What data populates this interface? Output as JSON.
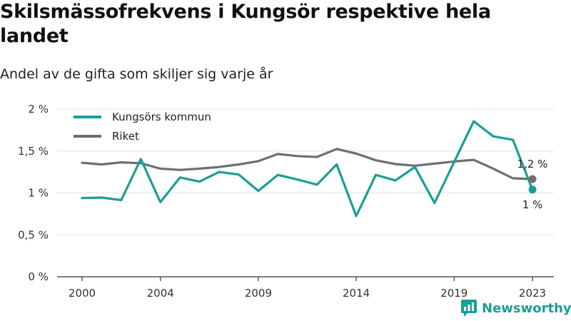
{
  "title": "Skilsmässofrekvens i Kungsör respektive hela landet",
  "subtitle": "Andel av de gifta som skiljer sig varje år",
  "brand": {
    "name": "Newsworthy",
    "icon": "newsworthy-logo-icon",
    "color": "#1a9e96"
  },
  "chart_data": {
    "type": "line",
    "x": [
      2000,
      2001,
      2002,
      2003,
      2004,
      2005,
      2006,
      2007,
      2008,
      2009,
      2010,
      2011,
      2012,
      2013,
      2014,
      2015,
      2016,
      2017,
      2018,
      2019,
      2020,
      2021,
      2022,
      2023
    ],
    "series": [
      {
        "name": "Kungsörs kommun",
        "color": "#1a9e96",
        "values": [
          0.94,
          0.945,
          0.915,
          1.405,
          0.89,
          1.185,
          1.135,
          1.25,
          1.22,
          1.025,
          1.215,
          1.16,
          1.1,
          1.34,
          0.725,
          1.215,
          1.15,
          1.31,
          0.88,
          1.37,
          1.855,
          1.675,
          1.635,
          1.04
        ],
        "end_label": "1 %"
      },
      {
        "name": "Riket",
        "color": "#6e6e73",
        "values": [
          1.36,
          1.34,
          1.365,
          1.355,
          1.29,
          1.275,
          1.29,
          1.31,
          1.34,
          1.38,
          1.465,
          1.44,
          1.43,
          1.525,
          1.47,
          1.39,
          1.345,
          1.325,
          1.35,
          1.375,
          1.395,
          1.29,
          1.175,
          1.165
        ],
        "end_label": "1,2 %"
      }
    ],
    "x_ticks": [
      "2000",
      "2004",
      "2009",
      "2014",
      "2019",
      "2023"
    ],
    "x_tick_values": [
      2000,
      2004,
      2009,
      2014,
      2019,
      2023
    ],
    "y_ticks": [
      "0 %",
      "0,5 %",
      "1 %",
      "1,5 %",
      "2 %"
    ],
    "y_tick_values": [
      0,
      0.5,
      1,
      1.5,
      2
    ],
    "ylim": [
      0,
      2
    ],
    "xlim": [
      2000,
      2023
    ],
    "grid": true,
    "legend": "top-left"
  }
}
